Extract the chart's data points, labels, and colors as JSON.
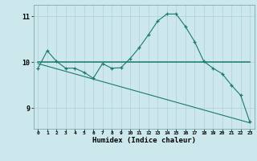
{
  "title": "",
  "xlabel": "Humidex (Indice chaleur)",
  "bg_color": "#cce8ec",
  "grid_color": "#b0d0d4",
  "line_color": "#1a7a6e",
  "xlim": [
    -0.5,
    23.5
  ],
  "ylim": [
    8.55,
    11.25
  ],
  "yticks": [
    9,
    10,
    11
  ],
  "xticks": [
    0,
    1,
    2,
    3,
    4,
    5,
    6,
    7,
    8,
    9,
    10,
    11,
    12,
    13,
    14,
    15,
    16,
    17,
    18,
    19,
    20,
    21,
    22,
    23
  ],
  "line1_x": [
    0,
    1,
    2,
    3,
    4,
    5,
    6,
    7,
    8,
    9,
    10,
    11,
    12,
    13,
    14,
    15,
    16,
    17,
    18,
    19,
    20,
    21,
    22,
    23
  ],
  "line1_y": [
    9.87,
    10.25,
    10.02,
    9.87,
    9.87,
    9.78,
    9.65,
    9.97,
    9.87,
    9.88,
    10.08,
    10.32,
    10.6,
    10.9,
    11.05,
    11.05,
    10.78,
    10.45,
    10.02,
    9.87,
    9.75,
    9.5,
    9.28,
    8.7
  ],
  "line2_x": [
    0,
    23
  ],
  "line2_y": [
    10.0,
    10.0
  ],
  "line3_x": [
    0,
    23
  ],
  "line3_y": [
    9.97,
    8.68
  ],
  "marker": "+"
}
